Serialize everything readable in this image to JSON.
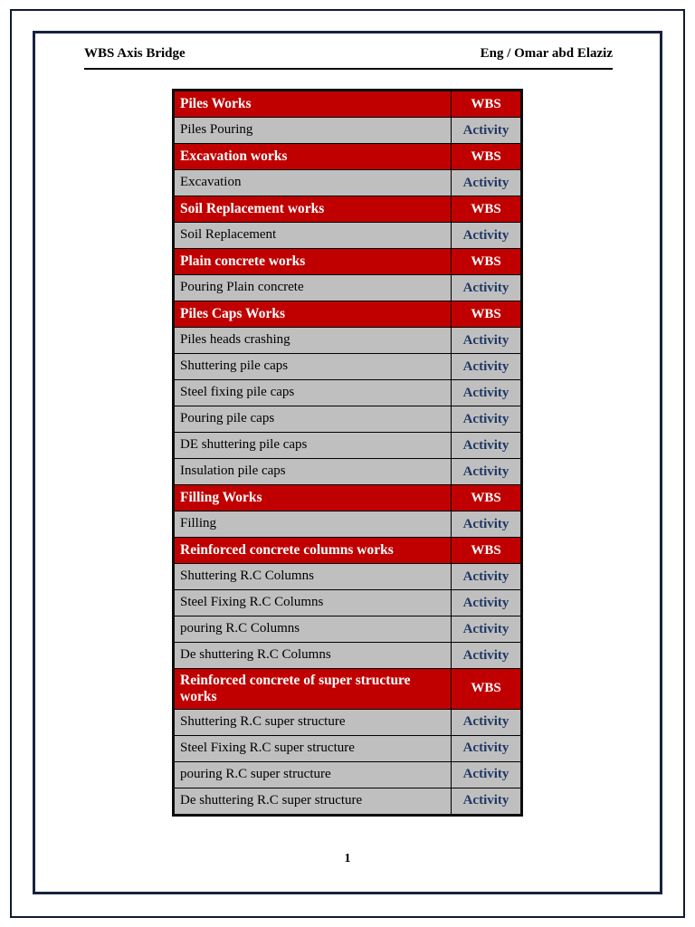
{
  "header": {
    "title": "WBS Axis Bridge",
    "author": "Eng / Omar abd Elaziz"
  },
  "table": {
    "rows": [
      {
        "label": "Piles Works",
        "type": "WBS"
      },
      {
        "label": "Piles Pouring",
        "type": "Activity"
      },
      {
        "label": "Excavation works",
        "type": "WBS"
      },
      {
        "label": "Excavation",
        "type": "Activity"
      },
      {
        "label": "Soil Replacement works",
        "type": "WBS"
      },
      {
        "label": "Soil Replacement",
        "type": "Activity"
      },
      {
        "label": "Plain concrete works",
        "type": "WBS"
      },
      {
        "label": "Pouring Plain concrete",
        "type": "Activity"
      },
      {
        "label": "Piles Caps Works",
        "type": "WBS"
      },
      {
        "label": "Piles heads crashing",
        "type": "Activity"
      },
      {
        "label": "Shuttering pile caps",
        "type": "Activity"
      },
      {
        "label": "Steel fixing pile caps",
        "type": "Activity"
      },
      {
        "label": "Pouring pile caps",
        "type": "Activity"
      },
      {
        "label": "DE shuttering pile caps",
        "type": "Activity"
      },
      {
        "label": "Insulation pile caps",
        "type": "Activity"
      },
      {
        "label": "Filling Works",
        "type": "WBS"
      },
      {
        "label": "Filling",
        "type": "Activity"
      },
      {
        "label": "Reinforced concrete columns works",
        "type": "WBS"
      },
      {
        "label": "Shuttering R.C Columns",
        "type": "Activity"
      },
      {
        "label": "Steel Fixing R.C Columns",
        "type": "Activity"
      },
      {
        "label": "pouring R.C Columns",
        "type": "Activity"
      },
      {
        "label": "De shuttering R.C Columns",
        "type": "Activity"
      },
      {
        "label": "Reinforced concrete of super structure works",
        "type": "WBS"
      },
      {
        "label": "Shuttering R.C super structure",
        "type": "Activity"
      },
      {
        "label": "Steel Fixing R.C super structure",
        "type": "Activity"
      },
      {
        "label": "pouring R.C super structure",
        "type": "Activity"
      },
      {
        "label": "De shuttering R.C super structure",
        "type": "Activity"
      }
    ]
  },
  "footer": {
    "page_number": "1"
  },
  "colors": {
    "wbs_bg": "#C00000",
    "activity_bg": "#BFBFBF",
    "activity_text": "#1F3864",
    "frame_navy": "#17233F"
  }
}
